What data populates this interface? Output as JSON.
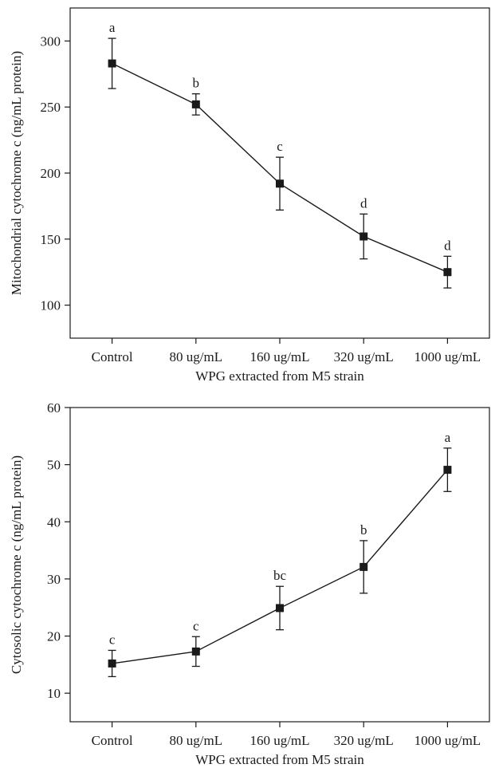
{
  "chart_data": [
    {
      "type": "line",
      "categories": [
        "Control",
        "80 ug/mL",
        "160 ug/mL",
        "320 ug/mL",
        "1000 ug/mL"
      ],
      "series": [
        {
          "values": [
            283,
            252,
            192,
            152,
            125
          ],
          "errors": [
            19,
            8,
            20,
            17,
            12
          ],
          "labels": [
            "a",
            "b",
            "c",
            "d",
            "d"
          ]
        }
      ],
      "xlabel": "WPG extracted from M5 strain",
      "ylabel": "Mitochondrial cytochrome c (ng/mL protein)",
      "ylim": [
        75,
        325
      ],
      "yticks": [
        100,
        150,
        200,
        250,
        300
      ],
      "marker": "square",
      "color": "#1a1a1a",
      "grid": false
    },
    {
      "type": "line",
      "categories": [
        "Control",
        "80 ug/mL",
        "160 ug/mL",
        "320 ug/mL",
        "1000 ug/mL"
      ],
      "series": [
        {
          "values": [
            15.2,
            17.3,
            24.9,
            32.1,
            49.1
          ],
          "errors": [
            2.3,
            2.6,
            3.8,
            4.6,
            3.8
          ],
          "labels": [
            "c",
            "c",
            "bc",
            "b",
            "a"
          ]
        }
      ],
      "xlabel": "WPG extracted from M5 strain",
      "ylabel": "Cytosolic cytochrome c (ng/mL protein)",
      "ylim": [
        5,
        60
      ],
      "yticks": [
        10,
        20,
        30,
        40,
        50,
        60
      ],
      "marker": "square",
      "color": "#1a1a1a",
      "grid": false
    }
  ]
}
